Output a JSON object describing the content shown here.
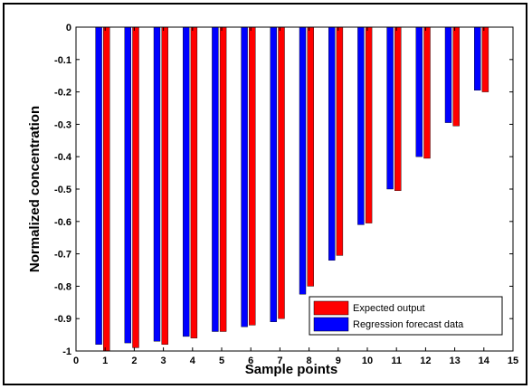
{
  "chart_data": {
    "type": "bar",
    "title": "",
    "xlabel": "Sample points",
    "ylabel": "Normalized concentration",
    "xlim": [
      0,
      15
    ],
    "ylim": [
      -1,
      0
    ],
    "x_ticks": [
      "0",
      "1",
      "2",
      "3",
      "4",
      "5",
      "6",
      "7",
      "8",
      "9",
      "10",
      "11",
      "12",
      "13",
      "14",
      "15"
    ],
    "y_ticks": [
      "0",
      "-0.1",
      "-0.2",
      "-0.3",
      "-0.4",
      "-0.5",
      "-0.6",
      "-0.7",
      "-0.8",
      "-0.9",
      "-1"
    ],
    "categories": [
      1,
      2,
      3,
      4,
      5,
      6,
      7,
      8,
      9,
      10,
      11,
      12,
      13,
      14
    ],
    "grid": false,
    "legend_position": "bottom-right",
    "series": [
      {
        "name": "Regression forecast data",
        "color": "#0000ff",
        "values": [
          -0.98,
          -0.975,
          -0.97,
          -0.955,
          -0.94,
          -0.925,
          -0.91,
          -0.825,
          -0.72,
          -0.61,
          -0.5,
          -0.4,
          -0.295,
          -0.195
        ]
      },
      {
        "name": "Expected output",
        "color": "#ff0000",
        "values": [
          -1.0,
          -0.99,
          -0.98,
          -0.96,
          -0.94,
          -0.92,
          -0.9,
          -0.8,
          -0.705,
          -0.605,
          -0.505,
          -0.405,
          -0.305,
          -0.2
        ]
      }
    ]
  }
}
